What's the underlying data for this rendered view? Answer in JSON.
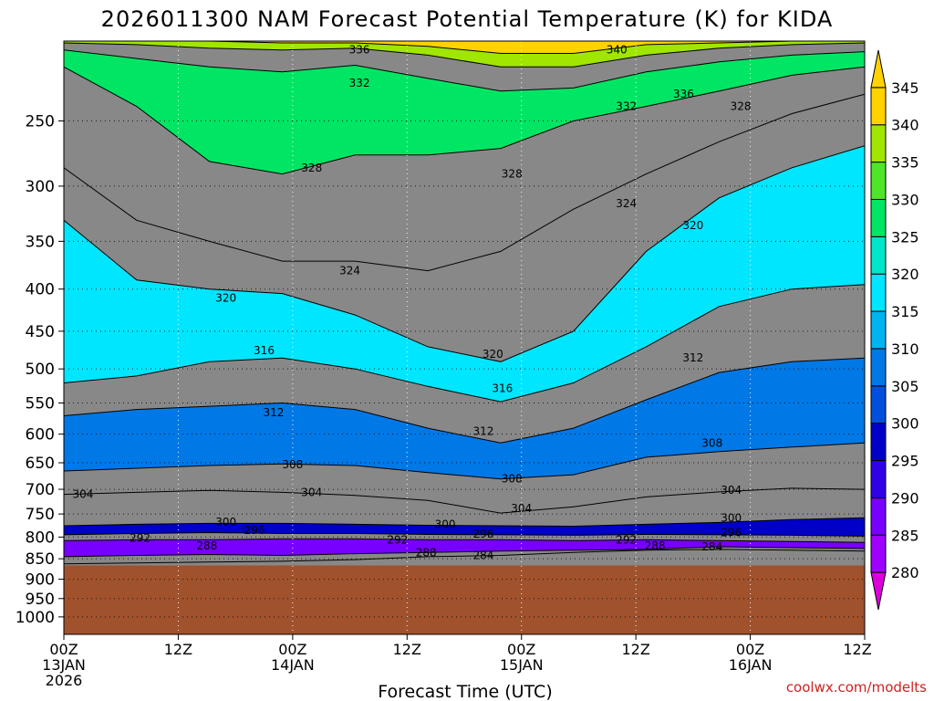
{
  "chart_data": {
    "type": "contour",
    "title": "2026011300 NAM Forecast Potential Temperature (K) for KIDA",
    "xlabel": "Forecast Time (UTC)",
    "ylabel": "",
    "credit": "coolwx.com/modelts",
    "x_ticks": [
      {
        "hour": 0,
        "lines": [
          "00Z",
          "13JAN",
          "2026"
        ]
      },
      {
        "hour": 12,
        "lines": [
          "12Z"
        ]
      },
      {
        "hour": 24,
        "lines": [
          "00Z",
          "14JAN"
        ]
      },
      {
        "hour": 36,
        "lines": [
          "12Z"
        ]
      },
      {
        "hour": 48,
        "lines": [
          "00Z",
          "15JAN"
        ]
      },
      {
        "hour": 60,
        "lines": [
          "12Z"
        ]
      },
      {
        "hour": 72,
        "lines": [
          "00Z",
          "16JAN"
        ]
      },
      {
        "hour": 84,
        "lines": [
          "12Z"
        ]
      }
    ],
    "xlim_hours": [
      0,
      84
    ],
    "y_ticks": [
      250,
      300,
      350,
      400,
      450,
      500,
      550,
      600,
      650,
      700,
      750,
      800,
      850,
      900,
      950,
      1000
    ],
    "ylim_hpa": [
      200,
      1050
    ],
    "y_scale": "log-pressure (inverted)",
    "surface_pressure_hpa": 866,
    "grid": "dotted",
    "colorbar": {
      "ticks": [
        280,
        285,
        290,
        295,
        300,
        305,
        310,
        315,
        320,
        325,
        330,
        335,
        340,
        345
      ],
      "range": [
        275,
        350
      ],
      "colors": {
        "280": "#dc00dc",
        "285": "#a000ff",
        "290": "#7800ff",
        "295": "#3000e6",
        "300": "#0000c8",
        "305": "#0050dc",
        "310": "#0078e6",
        "315": "#00b4f0",
        "320": "#00e6ff",
        "325": "#00e6c8",
        "330": "#00e664",
        "335": "#50e628",
        "340": "#a0e600",
        "345": "#ffd200"
      }
    },
    "ground_color": "#a0522d",
    "isentropes": [
      {
        "theta": 284,
        "p": [
          862,
          860,
          858,
          856,
          852,
          845,
          842,
          835,
          830,
          828,
          830,
          832
        ]
      },
      {
        "theta": 288,
        "p": [
          845,
          842,
          840,
          842,
          838,
          835,
          832,
          830,
          828,
          822,
          824,
          826
        ]
      },
      {
        "theta": 292,
        "p": [
          808,
          806,
          806,
          804,
          804,
          806,
          806,
          808,
          806,
          808,
          810,
          812
        ]
      },
      {
        "theta": 296,
        "p": [
          795,
          792,
          790,
          792,
          792,
          794,
          795,
          796,
          794,
          795,
          796,
          798
        ]
      },
      {
        "theta": 300,
        "p": [
          775,
          772,
          770,
          770,
          772,
          774,
          775,
          776,
          772,
          768,
          762,
          758
        ]
      },
      {
        "theta": 304,
        "p": [
          710,
          706,
          702,
          706,
          712,
          722,
          748,
          735,
          715,
          705,
          698,
          700
        ]
      },
      {
        "theta": 308,
        "p": [
          665,
          660,
          655,
          652,
          655,
          668,
          680,
          672,
          640,
          630,
          622,
          615
        ]
      },
      {
        "theta": 312,
        "p": [
          570,
          560,
          555,
          550,
          560,
          590,
          615,
          590,
          545,
          505,
          490,
          485
        ]
      },
      {
        "theta": 316,
        "p": [
          520,
          510,
          490,
          485,
          500,
          525,
          548,
          520,
          470,
          420,
          400,
          395
        ]
      },
      {
        "theta": 320,
        "p": [
          330,
          390,
          400,
          405,
          430,
          470,
          490,
          450,
          360,
          310,
          285,
          268
        ]
      },
      {
        "theta": 324,
        "p": [
          285,
          330,
          350,
          370,
          370,
          380,
          360,
          320,
          290,
          265,
          245,
          232
        ]
      },
      {
        "theta": 328,
        "p": [
          215,
          240,
          280,
          290,
          275,
          275,
          270,
          250,
          240,
          230,
          220,
          215
        ]
      },
      {
        "theta": 332,
        "p": [
          205,
          210,
          215,
          218,
          214,
          222,
          230,
          228,
          218,
          212,
          208,
          206
        ]
      },
      {
        "theta": 336,
        "p": [
          201,
          202,
          204,
          205,
          204,
          208,
          215,
          215,
          208,
          204,
          202,
          201
        ]
      },
      {
        "theta": 340,
        "p": [
          200,
          200,
          200,
          201,
          201,
          203,
          207,
          207,
          202,
          201,
          200,
          200
        ]
      }
    ],
    "contour_labels": [
      {
        "text": "336",
        "hour": 31,
        "p": 205
      },
      {
        "text": "340",
        "hour": 58,
        "p": 205
      },
      {
        "text": "332",
        "hour": 31,
        "p": 225
      },
      {
        "text": "336",
        "hour": 65,
        "p": 232
      },
      {
        "text": "332",
        "hour": 59,
        "p": 240
      },
      {
        "text": "328",
        "hour": 71,
        "p": 240
      },
      {
        "text": "328",
        "hour": 26,
        "p": 285
      },
      {
        "text": "328",
        "hour": 47,
        "p": 290
      },
      {
        "text": "324",
        "hour": 59,
        "p": 315
      },
      {
        "text": "320",
        "hour": 66,
        "p": 335
      },
      {
        "text": "324",
        "hour": 30,
        "p": 380
      },
      {
        "text": "320",
        "hour": 17,
        "p": 410
      },
      {
        "text": "316",
        "hour": 21,
        "p": 475
      },
      {
        "text": "320",
        "hour": 45,
        "p": 480
      },
      {
        "text": "312",
        "hour": 66,
        "p": 485
      },
      {
        "text": "316",
        "hour": 46,
        "p": 528
      },
      {
        "text": "312",
        "hour": 22,
        "p": 565
      },
      {
        "text": "312",
        "hour": 44,
        "p": 595
      },
      {
        "text": "308",
        "hour": 68,
        "p": 615
      },
      {
        "text": "308",
        "hour": 24,
        "p": 653
      },
      {
        "text": "308",
        "hour": 47,
        "p": 680
      },
      {
        "text": "304",
        "hour": 2,
        "p": 710
      },
      {
        "text": "304",
        "hour": 26,
        "p": 706
      },
      {
        "text": "304",
        "hour": 70,
        "p": 702
      },
      {
        "text": "304",
        "hour": 48,
        "p": 738
      },
      {
        "text": "300",
        "hour": 17,
        "p": 767
      },
      {
        "text": "300",
        "hour": 40,
        "p": 772
      },
      {
        "text": "300",
        "hour": 70,
        "p": 758
      },
      {
        "text": "296",
        "hour": 20,
        "p": 785
      },
      {
        "text": "296",
        "hour": 44,
        "p": 793
      },
      {
        "text": "296",
        "hour": 70,
        "p": 790
      },
      {
        "text": "292",
        "hour": 8,
        "p": 802
      },
      {
        "text": "292",
        "hour": 35,
        "p": 806
      },
      {
        "text": "292",
        "hour": 59,
        "p": 806
      },
      {
        "text": "288",
        "hour": 15,
        "p": 820
      },
      {
        "text": "288",
        "hour": 38,
        "p": 836
      },
      {
        "text": "288",
        "hour": 62,
        "p": 820
      },
      {
        "text": "284",
        "hour": 44,
        "p": 842
      },
      {
        "text": "284",
        "hour": 68,
        "p": 822
      }
    ]
  }
}
